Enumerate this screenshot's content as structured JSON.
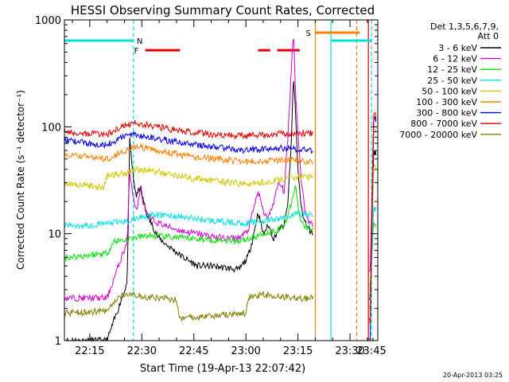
{
  "chart_data": {
    "type": "line",
    "title": "HESSI Observing Summary Count Rates, Corrected",
    "xlabel": "Start Time (19-Apr-13 22:07:42)",
    "ylabel": "Corrected Count Rate (s⁻¹ detector⁻¹)",
    "footer": "20-Apr-2013 03:25",
    "yscale": "log",
    "xlim": [
      7.7,
      98
    ],
    "ylim": [
      1,
      1000
    ],
    "x_ticks": [
      {
        "value": 15,
        "label": "22:15"
      },
      {
        "value": 30,
        "label": "22:30"
      },
      {
        "value": 45,
        "label": "22:45"
      },
      {
        "value": 60,
        "label": "23:00"
      },
      {
        "value": 75,
        "label": "23:15"
      },
      {
        "value": 90,
        "label": "23:30"
      },
      {
        "value": 105,
        "label": "23:45"
      }
    ],
    "y_ticks": [
      {
        "value": 1,
        "label": "1"
      },
      {
        "value": 10,
        "label": "10"
      },
      {
        "value": 100,
        "label": "100"
      },
      {
        "value": 1000,
        "label": "1000"
      }
    ],
    "legend_header": [
      "Det 1,3,5,6,7,9,",
      "Att 0"
    ],
    "legend_placement": "right",
    "gaps": [
      [
        79.5,
        95.5
      ]
    ],
    "series": [
      {
        "name": "3 - 6 keV",
        "color": "#000000",
        "x": [
          7.7,
          20,
          25.8,
          26.5,
          27.6,
          28.5,
          29.5,
          30.5,
          31.5,
          33,
          35,
          38,
          42,
          46,
          50,
          54,
          58,
          60.5,
          62,
          63.5,
          65,
          66.5,
          68,
          69.5,
          71,
          72,
          73,
          73.7,
          74.3,
          75,
          76,
          77,
          78,
          79.4,
          95.8,
          96.8,
          97.5
        ],
        "y": [
          1.0,
          1.0,
          3.5,
          75,
          32,
          22,
          28,
          20,
          15,
          12,
          9,
          7.5,
          6,
          5,
          5,
          4.8,
          4.6,
          6,
          9,
          16,
          10,
          12,
          9,
          11,
          12,
          18,
          60,
          300,
          140,
          38,
          17,
          13,
          11,
          10,
          2.5,
          60,
          55
        ]
      },
      {
        "name": "6 - 12 keV",
        "color": "#d400d4",
        "x": [
          7.7,
          20,
          25.8,
          26.5,
          27.6,
          28.5,
          29.5,
          30.5,
          31.5,
          33,
          35,
          38,
          42,
          46,
          50,
          54,
          58,
          60.5,
          62,
          63.5,
          65,
          66.5,
          68,
          69.5,
          71,
          72,
          73,
          73.7,
          74.3,
          75,
          76,
          77,
          78,
          79.4,
          95.8,
          96.8,
          97.5
        ],
        "y": [
          2.5,
          2.5,
          8.5,
          38,
          22,
          16,
          26,
          19,
          15,
          13.5,
          12.5,
          11.5,
          10.5,
          10,
          9.5,
          9,
          9.2,
          10.5,
          16,
          25,
          16,
          14,
          20,
          30,
          25,
          70,
          300,
          820,
          210,
          90,
          30,
          17,
          13,
          12,
          4.5,
          120,
          115
        ]
      },
      {
        "name": "12 - 25 keV",
        "color": "#00e000",
        "x": [
          7.7,
          13,
          20,
          22,
          25.8,
          28,
          32,
          40,
          50,
          58,
          62,
          65,
          70,
          72,
          73.5,
          74.3,
          75.5,
          77,
          79.4,
          95.8,
          96.8,
          97.5
        ],
        "y": [
          6,
          6.2,
          6.6,
          8.5,
          8.8,
          9.2,
          9.6,
          9.2,
          8.8,
          8.6,
          9.2,
          10,
          11,
          14,
          22,
          28,
          14,
          12,
          11,
          3.5,
          12,
          12
        ]
      },
      {
        "name": "25 - 50 keV",
        "color": "#00e0e0",
        "x": [
          7.7,
          15,
          20,
          25.8,
          30,
          36,
          44,
          52,
          60,
          64,
          68,
          72,
          75,
          79.4,
          95.8,
          96.8,
          97.5
        ],
        "y": [
          12,
          12,
          12.5,
          13,
          14.5,
          15,
          14,
          13,
          12.5,
          13,
          13.5,
          14.5,
          15.5,
          15,
          2.5,
          17,
          17
        ]
      },
      {
        "name": "50 - 100 keV",
        "color": "#d2c800",
        "x": [
          7.7,
          15,
          19,
          20,
          25,
          28,
          32,
          38,
          45,
          52,
          60,
          65,
          70,
          75,
          79.4,
          95.8,
          96.8,
          97.5
        ],
        "y": [
          30,
          28,
          27,
          35,
          37,
          40,
          39,
          36,
          33,
          31,
          29,
          30,
          32,
          34,
          34,
          1.5,
          42,
          42
        ]
      },
      {
        "name": "100 - 300 keV",
        "color": "#ff7f00",
        "x": [
          7.7,
          15,
          20,
          25,
          28,
          32,
          38,
          45,
          52,
          60,
          65,
          70,
          75,
          79.4,
          95.8,
          96.8,
          97.5
        ],
        "y": [
          55,
          52,
          50,
          60,
          65,
          62,
          57,
          52,
          50,
          47,
          48,
          49,
          48,
          47,
          2,
          90,
          90
        ]
      },
      {
        "name": "300 - 800 keV",
        "color": "#0000e0",
        "x": [
          7.7,
          15,
          20,
          25,
          28,
          32,
          38,
          45,
          52,
          60,
          65,
          70,
          75,
          79.4,
          95.8,
          96.8,
          97.5
        ],
        "y": [
          75,
          70,
          68,
          82,
          85,
          80,
          74,
          68,
          64,
          60,
          62,
          63,
          62,
          60,
          1,
          120,
          118
        ]
      },
      {
        "name": "800 - 7000 keV",
        "color": "#e00000",
        "x": [
          7.7,
          15,
          20,
          25,
          28,
          32,
          38,
          45,
          52,
          60,
          65,
          70,
          75,
          79.4,
          95.8,
          96.8,
          97.5
        ],
        "y": [
          90,
          86,
          85,
          102,
          108,
          104,
          95,
          88,
          84,
          82,
          84,
          87,
          88,
          86,
          1.5,
          130,
          128
        ]
      },
      {
        "name": "7000 - 20000 keV",
        "color": "#808000",
        "x": [
          7.7,
          20,
          24,
          25.8,
          30,
          35,
          40,
          41,
          50,
          60,
          61,
          65,
          70,
          75,
          79.4,
          95.8,
          96.8,
          97.5
        ],
        "y": [
          1.8,
          1.9,
          2.6,
          2.8,
          2.6,
          2.5,
          2.4,
          1.6,
          1.7,
          1.8,
          2.6,
          2.7,
          2.6,
          2.5,
          2.5,
          1,
          1,
          1
        ]
      }
    ],
    "flag_bars": [
      {
        "label": "N",
        "color": "#00e0e0",
        "y": 640,
        "segments": [
          [
            7.7,
            27.6
          ],
          [
            84.5,
            96.3
          ]
        ]
      },
      {
        "label": "F",
        "color": "#e00000",
        "y": 520,
        "segments": [
          [
            31,
            41
          ],
          [
            63.5,
            67
          ],
          [
            69,
            75.5
          ]
        ]
      },
      {
        "label": "S",
        "color": "#ff7f00",
        "y": 760,
        "segments": [
          [
            80,
            92.8
          ]
        ]
      }
    ],
    "vlines": [
      {
        "x": 27.6,
        "color": "#00e0e0",
        "style": "dashed"
      },
      {
        "x": 96.2,
        "color": "#00e0e0",
        "style": "dashed"
      },
      {
        "x": 91.9,
        "color": "#ff7f00",
        "style": "dashed"
      },
      {
        "x": 80,
        "color": "#ff7f00",
        "style": "solid"
      },
      {
        "x": 84.5,
        "color": "#00e0e0",
        "style": "solid"
      },
      {
        "x": 95.3,
        "color": "#e00000",
        "style": "solid"
      }
    ]
  }
}
